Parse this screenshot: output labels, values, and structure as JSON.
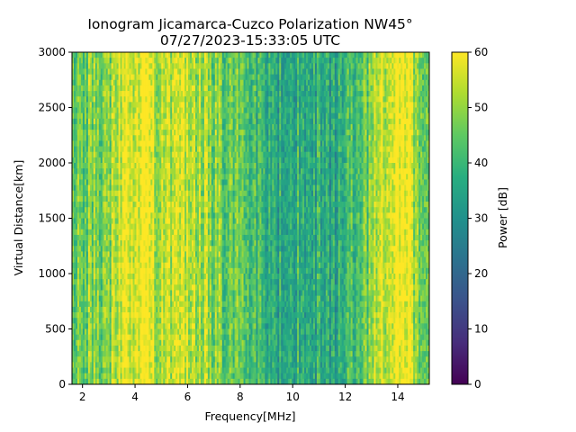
{
  "chart_data": {
    "type": "heatmap",
    "title": "Ionogram Jicamarca-Cuzco Polarization NW45°",
    "subtitle": "07/27/2023-15:33:05 UTC",
    "xlabel": "Frequency[MHz]",
    "ylabel": "Virtual Distance[km]",
    "xlim": [
      1.6,
      15.2
    ],
    "ylim": [
      0,
      3000
    ],
    "x_ticks": [
      2,
      4,
      6,
      8,
      10,
      12,
      14
    ],
    "y_ticks": [
      0,
      500,
      1000,
      1500,
      2000,
      2500,
      3000
    ],
    "colorbar": {
      "label": "Power [dB]",
      "range": [
        0,
        60
      ],
      "ticks": [
        0,
        10,
        20,
        30,
        40,
        50,
        60
      ],
      "colormap": "viridis"
    },
    "mean_power_profile_db": {
      "frequency_mhz": [
        1.6,
        2.0,
        2.5,
        3.0,
        3.5,
        3.8,
        4.2,
        4.6,
        5.0,
        5.5,
        6.0,
        6.5,
        7.0,
        7.5,
        8.0,
        8.5,
        9.0,
        9.5,
        10.0,
        10.5,
        11.0,
        11.5,
        11.8,
        12.2,
        12.6,
        13.0,
        13.3,
        13.6,
        14.0,
        14.4,
        14.8,
        15.2
      ],
      "power_db": [
        45,
        47,
        49,
        47,
        57,
        58,
        59,
        56,
        53,
        55,
        57,
        52,
        48,
        46,
        44,
        41,
        38,
        36,
        37,
        38,
        37,
        33,
        39,
        41,
        44,
        49,
        55,
        58,
        59,
        58,
        50,
        46
      ]
    },
    "grid": false,
    "legend": "colorbar-right"
  }
}
